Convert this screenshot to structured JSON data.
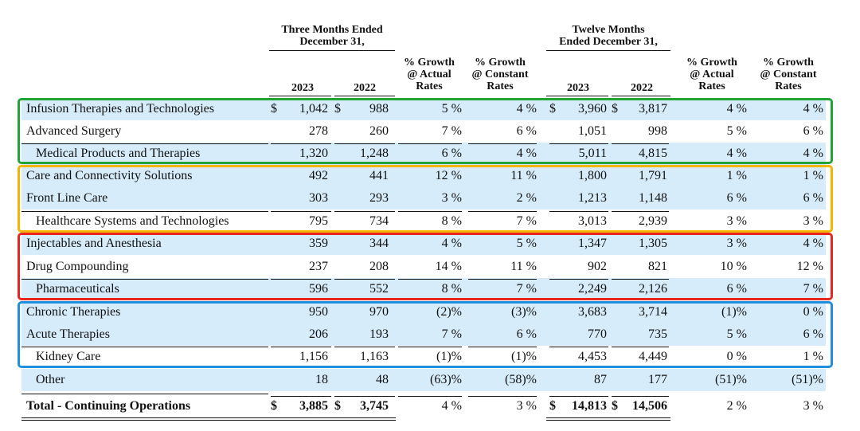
{
  "header": {
    "three_months": [
      "Three Months Ended",
      "December 31,"
    ],
    "twelve_months": [
      "Twelve Months",
      "Ended December 31,"
    ],
    "y2023": "2023",
    "y2022": "2022",
    "actual": [
      "% Growth",
      "@ Actual",
      "Rates"
    ],
    "constant": [
      "% Growth",
      "@ Constant",
      "Rates"
    ]
  },
  "rows": [
    {
      "label": "Infusion Therapies and Technologies",
      "q23": "1,042",
      "q22": "988",
      "qa": "5 %",
      "qc": "4 %",
      "y23": "3,960",
      "y22": "3,817",
      "ya": "4 %",
      "yc": "4 %",
      "dollar": "$"
    },
    {
      "label": "Advanced Surgery",
      "q23": "278",
      "q22": "260",
      "qa": "7 %",
      "qc": "6 %",
      "y23": "1,051",
      "y22": "998",
      "ya": "5 %",
      "yc": "6 %"
    },
    {
      "label": "Medical Products and Therapies",
      "q23": "1,320",
      "q22": "1,248",
      "qa": "6 %",
      "qc": "4 %",
      "y23": "5,011",
      "y22": "4,815",
      "ya": "4 %",
      "yc": "4 %"
    },
    {
      "label": "Care and Connectivity Solutions",
      "q23": "492",
      "q22": "441",
      "qa": "12 %",
      "qc": "11 %",
      "y23": "1,800",
      "y22": "1,791",
      "ya": "1 %",
      "yc": "1 %"
    },
    {
      "label": "Front Line Care",
      "q23": "303",
      "q22": "293",
      "qa": "3 %",
      "qc": "2 %",
      "y23": "1,213",
      "y22": "1,148",
      "ya": "6 %",
      "yc": "6 %"
    },
    {
      "label": "Healthcare Systems and Technologies",
      "q23": "795",
      "q22": "734",
      "qa": "8 %",
      "qc": "7 %",
      "y23": "3,013",
      "y22": "2,939",
      "ya": "3 %",
      "yc": "3 %"
    },
    {
      "label": "Injectables and Anesthesia",
      "q23": "359",
      "q22": "344",
      "qa": "4 %",
      "qc": "5 %",
      "y23": "1,347",
      "y22": "1,305",
      "ya": "3 %",
      "yc": "4 %"
    },
    {
      "label": "Drug Compounding",
      "q23": "237",
      "q22": "208",
      "qa": "14 %",
      "qc": "11 %",
      "y23": "902",
      "y22": "821",
      "ya": "10 %",
      "yc": "12 %"
    },
    {
      "label": "Pharmaceuticals",
      "q23": "596",
      "q22": "552",
      "qa": "8 %",
      "qc": "7 %",
      "y23": "2,249",
      "y22": "2,126",
      "ya": "6 %",
      "yc": "7 %"
    },
    {
      "label": "Chronic Therapies",
      "q23": "950",
      "q22": "970",
      "qa": "(2)%",
      "qc": "(3)%",
      "y23": "3,683",
      "y22": "3,714",
      "ya": "(1)%",
      "yc": "0 %"
    },
    {
      "label": "Acute Therapies",
      "q23": "206",
      "q22": "193",
      "qa": "7 %",
      "qc": "6 %",
      "y23": "770",
      "y22": "735",
      "ya": "5 %",
      "yc": "6 %"
    },
    {
      "label": "Kidney Care",
      "q23": "1,156",
      "q22": "1,163",
      "qa": "(1)%",
      "qc": "(1)%",
      "y23": "4,453",
      "y22": "4,449",
      "ya": "0 %",
      "yc": "1 %"
    },
    {
      "label": "Other",
      "q23": "18",
      "q22": "48",
      "qa": "(63)%",
      "qc": "(58)%",
      "y23": "87",
      "y22": "177",
      "ya": "(51)%",
      "yc": "(51)%"
    },
    {
      "label": "Total - Continuing Operations",
      "q23": "3,885",
      "q22": "3,745",
      "qa": "4 %",
      "qc": "3 %",
      "y23": "14,813",
      "y22": "14,506",
      "ya": "2 %",
      "yc": "3 %",
      "dollar": "$"
    }
  ],
  "colors": {
    "shade": "#d6ecfa",
    "green": "#21a336",
    "orange": "#f5b400",
    "red": "#e8261f",
    "blue": "#1f8fe0"
  }
}
